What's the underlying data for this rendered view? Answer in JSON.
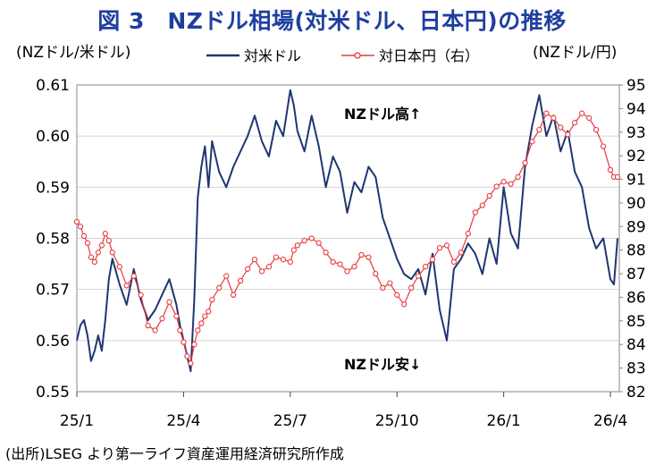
{
  "title": "図 3　NZドル相場(対米ドル、日本円)の推移",
  "source": "(出所)LSEG より第一ライフ資産運用経済研究所作成",
  "colors": {
    "usd": "#1f3672",
    "jpy": "#e8383d",
    "title": "#1f3f9f",
    "grid": "#d4d4d4"
  },
  "chart_data": {
    "type": "line",
    "title": "NZドル相場(対米ドル、日本円)の推移",
    "ylabel_left": "(NZドル/米ドル)",
    "ylabel_right": "(NZドル/円)",
    "ylim_left": [
      0.55,
      0.61
    ],
    "ylim_right": [
      82,
      95
    ],
    "yticks_left": [
      "0.55",
      "0.56",
      "0.57",
      "0.58",
      "0.59",
      "0.60",
      "0.61"
    ],
    "yticks_right": [
      "82",
      "83",
      "84",
      "85",
      "86",
      "87",
      "88",
      "89",
      "90",
      "91",
      "92",
      "93",
      "94",
      "95"
    ],
    "xlim": [
      0,
      15.25
    ],
    "xticks": [
      {
        "pos": 0,
        "label": "25/1"
      },
      {
        "pos": 3,
        "label": "25/4"
      },
      {
        "pos": 6,
        "label": "25/7"
      },
      {
        "pos": 9,
        "label": "25/10"
      },
      {
        "pos": 12,
        "label": "26/1"
      },
      {
        "pos": 15,
        "label": "26/4"
      }
    ],
    "annotations": {
      "up": "NZドル高↑",
      "down": "NZドル安↓"
    },
    "grid": true,
    "legend_position": "top-center",
    "series": [
      {
        "name": "対米ドル",
        "axis": "left",
        "x": [
          0,
          0.1,
          0.2,
          0.3,
          0.4,
          0.5,
          0.6,
          0.7,
          0.8,
          0.9,
          1.0,
          1.2,
          1.4,
          1.6,
          1.8,
          2.0,
          2.2,
          2.4,
          2.6,
          2.8,
          2.9,
          3.0,
          3.1,
          3.2,
          3.3,
          3.4,
          3.5,
          3.6,
          3.7,
          3.8,
          4.0,
          4.2,
          4.4,
          4.6,
          4.8,
          5.0,
          5.2,
          5.4,
          5.6,
          5.8,
          6.0,
          6.1,
          6.2,
          6.4,
          6.6,
          6.8,
          7.0,
          7.2,
          7.4,
          7.6,
          7.8,
          8.0,
          8.2,
          8.4,
          8.6,
          8.8,
          9.0,
          9.2,
          9.4,
          9.6,
          9.8,
          10.0,
          10.2,
          10.4,
          10.6,
          10.8,
          11.0,
          11.2,
          11.4,
          11.6,
          11.8,
          12.0,
          12.2,
          12.4,
          12.6,
          12.8,
          13.0,
          13.2,
          13.4,
          13.6,
          13.8,
          14.0,
          14.2,
          14.4,
          14.6,
          14.8,
          15.0,
          15.1,
          15.2
        ],
        "values": [
          0.56,
          0.563,
          0.564,
          0.561,
          0.556,
          0.558,
          0.561,
          0.558,
          0.564,
          0.572,
          0.576,
          0.571,
          0.567,
          0.574,
          0.568,
          0.564,
          0.566,
          0.569,
          0.572,
          0.567,
          0.563,
          0.56,
          0.557,
          0.554,
          0.568,
          0.588,
          0.594,
          0.598,
          0.59,
          0.599,
          0.593,
          0.59,
          0.594,
          0.597,
          0.6,
          0.604,
          0.599,
          0.596,
          0.603,
          0.6,
          0.609,
          0.606,
          0.601,
          0.597,
          0.604,
          0.598,
          0.59,
          0.596,
          0.593,
          0.585,
          0.591,
          0.589,
          0.594,
          0.592,
          0.584,
          0.58,
          0.576,
          0.573,
          0.572,
          0.574,
          0.569,
          0.577,
          0.566,
          0.56,
          0.574,
          0.576,
          0.579,
          0.577,
          0.573,
          0.58,
          0.575,
          0.59,
          0.581,
          0.578,
          0.594,
          0.602,
          0.608,
          0.6,
          0.604,
          0.597,
          0.601,
          0.593,
          0.59,
          0.582,
          0.578,
          0.58,
          0.572,
          0.571,
          0.58
        ]
      },
      {
        "name": "対日本円（右）",
        "axis": "right",
        "x": [
          0,
          0.1,
          0.2,
          0.3,
          0.4,
          0.5,
          0.6,
          0.7,
          0.8,
          0.9,
          1.0,
          1.2,
          1.4,
          1.6,
          1.8,
          2.0,
          2.2,
          2.4,
          2.6,
          2.8,
          2.9,
          3.0,
          3.1,
          3.2,
          3.3,
          3.4,
          3.5,
          3.6,
          3.7,
          3.8,
          4.0,
          4.2,
          4.4,
          4.6,
          4.8,
          5.0,
          5.2,
          5.4,
          5.6,
          5.8,
          6.0,
          6.1,
          6.2,
          6.4,
          6.6,
          6.8,
          7.0,
          7.2,
          7.4,
          7.6,
          7.8,
          8.0,
          8.2,
          8.4,
          8.6,
          8.8,
          9.0,
          9.2,
          9.4,
          9.6,
          9.8,
          10.0,
          10.2,
          10.4,
          10.6,
          10.8,
          11.0,
          11.2,
          11.4,
          11.6,
          11.8,
          12.0,
          12.2,
          12.4,
          12.6,
          12.8,
          13.0,
          13.2,
          13.4,
          13.6,
          13.8,
          14.0,
          14.2,
          14.4,
          14.6,
          14.8,
          15.0,
          15.1,
          15.2
        ],
        "values": [
          89.2,
          89.0,
          88.6,
          88.3,
          87.7,
          87.5,
          87.9,
          88.2,
          88.7,
          88.4,
          87.9,
          87.3,
          86.5,
          86.9,
          86.1,
          84.8,
          84.6,
          85.1,
          85.8,
          85.2,
          84.6,
          84.1,
          83.5,
          83.2,
          84.0,
          84.6,
          84.9,
          85.2,
          85.4,
          85.9,
          86.4,
          86.9,
          86.1,
          86.7,
          87.2,
          87.6,
          87.1,
          87.3,
          87.7,
          87.6,
          87.5,
          88.0,
          88.2,
          88.4,
          88.5,
          88.3,
          87.9,
          87.5,
          87.4,
          87.1,
          87.3,
          87.8,
          87.7,
          87.0,
          86.4,
          86.6,
          86.1,
          85.7,
          86.4,
          86.9,
          87.3,
          87.6,
          88.1,
          88.2,
          87.5,
          87.9,
          88.7,
          89.6,
          89.9,
          90.3,
          90.7,
          90.9,
          90.8,
          91.1,
          91.7,
          92.6,
          93.1,
          93.8,
          93.6,
          93.2,
          92.9,
          93.4,
          93.8,
          93.6,
          93.1,
          92.4,
          91.4,
          91.1,
          91.1
        ]
      }
    ]
  }
}
